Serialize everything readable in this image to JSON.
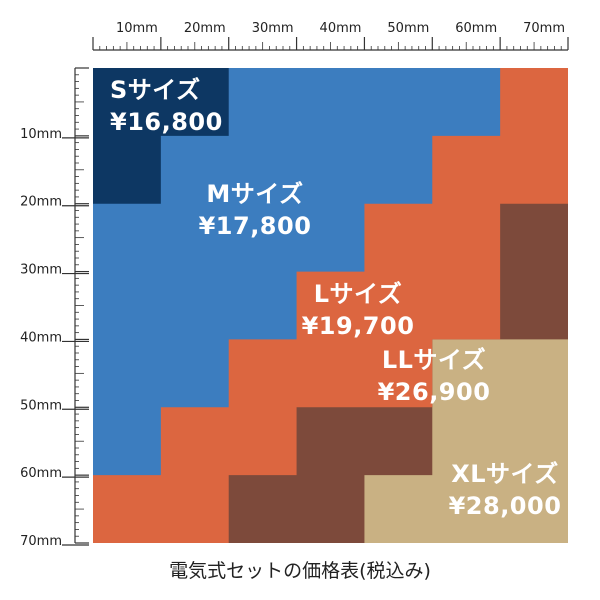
{
  "colors": {
    "s": "#0d3763",
    "m": "#3c7dbf",
    "l": "#dc6640",
    "ll": "#7d4a3b",
    "xl": "#c9b183",
    "ruler": "#333333"
  },
  "sizes": {
    "s": {
      "name": "Sサイズ",
      "price": "¥16,800"
    },
    "m": {
      "name": "Mサイズ",
      "price": "¥17,800"
    },
    "l": {
      "name": "Lサイズ",
      "price": "¥19,700"
    },
    "ll": {
      "name": "LLサイズ",
      "price": "¥26,900"
    },
    "xl": {
      "name": "XLサイズ",
      "price": "¥28,000"
    }
  },
  "ruler": {
    "top_labels": [
      "10mm",
      "20mm",
      "30mm",
      "40mm",
      "50mm",
      "60mm",
      "70mm"
    ],
    "left_labels": [
      "10mm",
      "20mm",
      "30mm",
      "40mm",
      "50mm",
      "60mm",
      "70mm"
    ]
  },
  "caption": "電気式セットの価格表(税込み)"
}
